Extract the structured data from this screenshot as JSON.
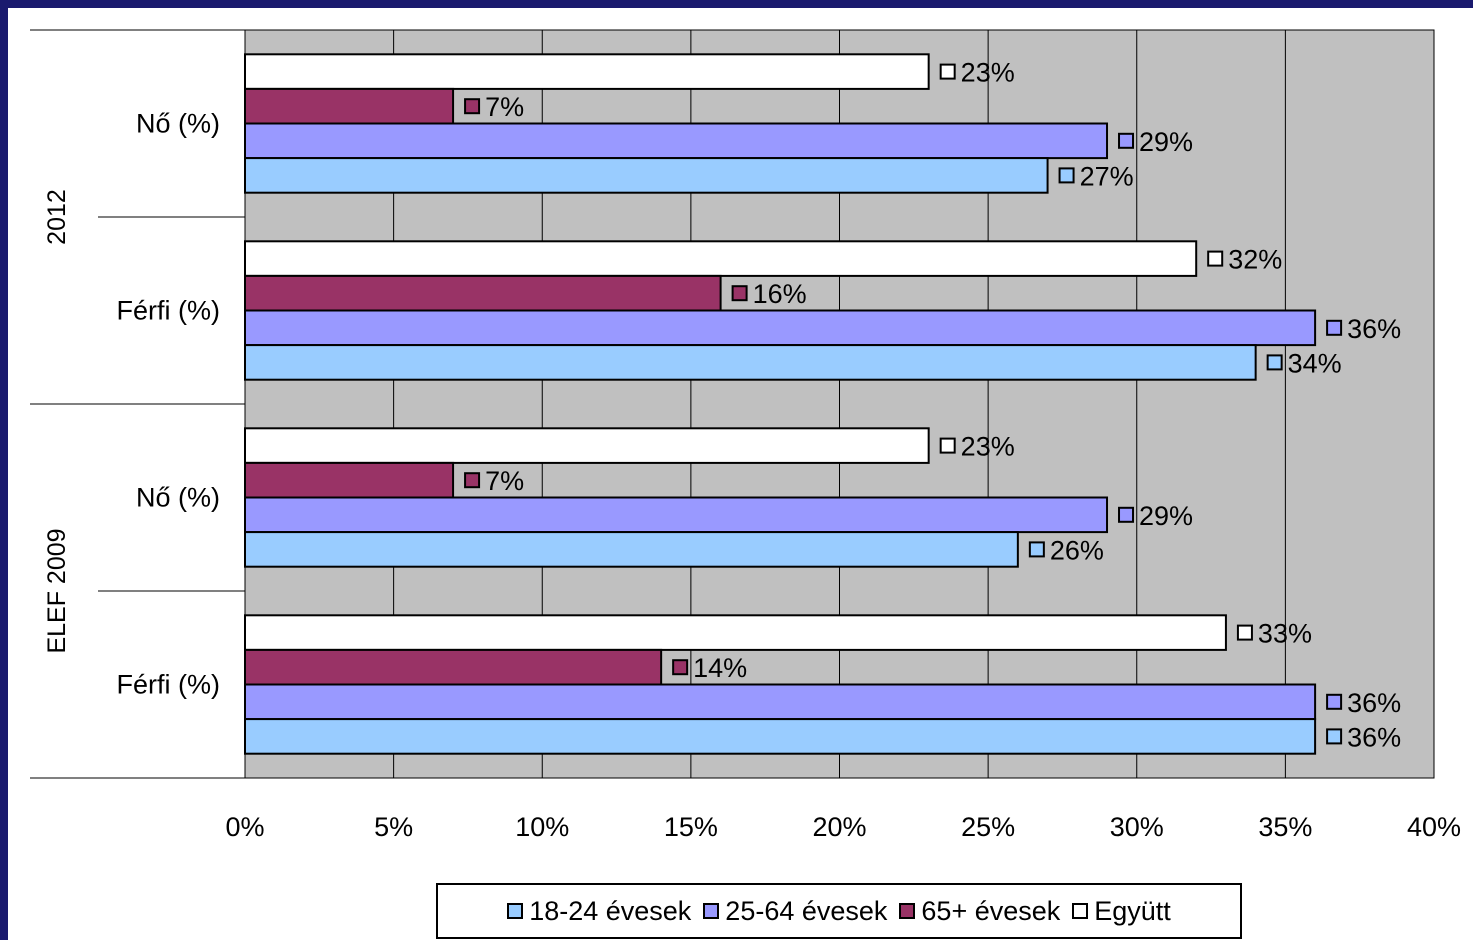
{
  "chart_data": {
    "type": "bar",
    "orientation": "horizontal",
    "groups": [
      {
        "label": "2012",
        "categories": [
          "Nő (%)",
          "Férfi (%)"
        ]
      },
      {
        "label": "ELEF 2009",
        "categories": [
          "Nő (%)",
          "Férfi (%)"
        ]
      }
    ],
    "series": [
      {
        "name": "18-24 évesek",
        "color": "#99ccff",
        "values": [
          27,
          34,
          26,
          36
        ]
      },
      {
        "name": "25-64 évesek",
        "color": "#9999ff",
        "values": [
          29,
          36,
          29,
          36
        ]
      },
      {
        "name": "65+ évesek",
        "color": "#993366",
        "values": [
          7,
          16,
          7,
          14
        ]
      },
      {
        "name": "Együtt",
        "color": "#ffffff",
        "values": [
          23,
          32,
          23,
          33
        ]
      }
    ],
    "xlim": [
      0,
      40
    ],
    "xticks": [
      "0%",
      "5%",
      "10%",
      "15%",
      "20%",
      "25%",
      "30%",
      "35%",
      "40%"
    ],
    "value_suffix": "%",
    "grid": true,
    "plot_background": "#c0c0c0",
    "legend_position": "bottom"
  }
}
